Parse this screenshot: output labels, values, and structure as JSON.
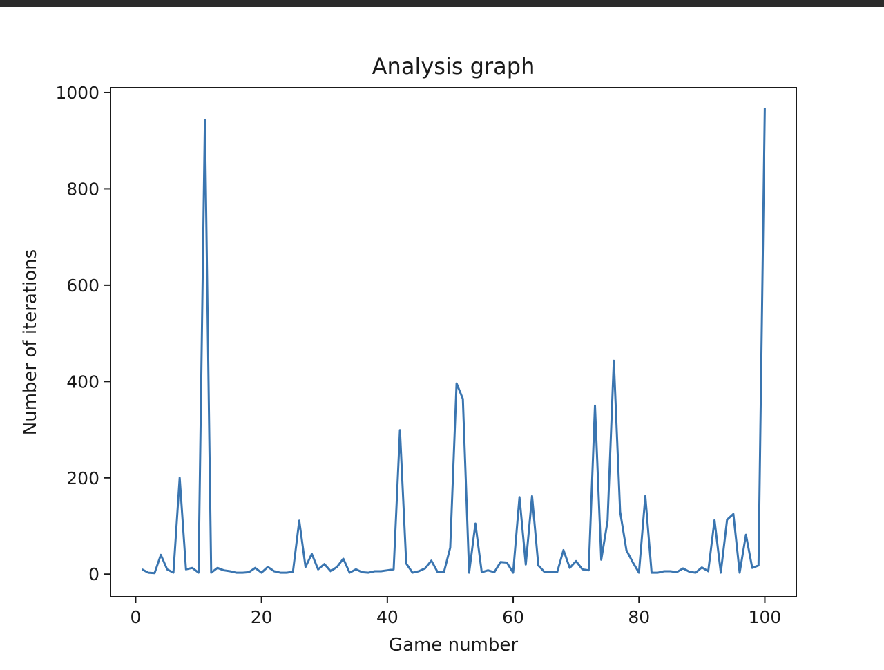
{
  "chart_data": {
    "type": "line",
    "title": "Analysis graph",
    "xlabel": "Game number",
    "ylabel": "Number of iterations",
    "xlim": [
      -4,
      105
    ],
    "ylim": [
      -47,
      1010
    ],
    "xticks": [
      0,
      20,
      40,
      60,
      80,
      100
    ],
    "yticks": [
      0,
      200,
      400,
      600,
      800,
      1000
    ],
    "grid": false,
    "line_color": "#3a75b0",
    "series": [
      {
        "x": [
          1,
          2,
          3,
          4,
          5,
          6,
          7,
          8,
          9,
          10,
          11,
          12,
          13,
          14,
          15,
          16,
          17,
          18,
          19,
          20,
          21,
          22,
          23,
          24,
          25,
          26,
          27,
          28,
          29,
          30,
          31,
          32,
          33,
          34,
          35,
          36,
          37,
          38,
          39,
          40,
          41,
          42,
          43,
          44,
          45,
          46,
          47,
          48,
          49,
          50,
          51,
          52,
          53,
          54,
          55,
          56,
          57,
          58,
          59,
          60,
          61,
          62,
          63,
          64,
          65,
          66,
          67,
          68,
          69,
          70,
          71,
          72,
          73,
          74,
          75,
          76,
          77,
          78,
          79,
          80,
          81,
          82,
          83,
          84,
          85,
          86,
          87,
          88,
          89,
          90,
          91,
          92,
          93,
          94,
          95,
          96,
          97,
          98,
          99,
          100
        ],
        "values": [
          10,
          3,
          2,
          40,
          10,
          3,
          200,
          10,
          13,
          3,
          943,
          3,
          13,
          8,
          6,
          3,
          3,
          4,
          13,
          3,
          15,
          6,
          3,
          3,
          5,
          111,
          15,
          42,
          10,
          21,
          6,
          15,
          32,
          3,
          10,
          4,
          3,
          6,
          6,
          8,
          10,
          299,
          22,
          3,
          6,
          12,
          28,
          4,
          4,
          55,
          396,
          364,
          3,
          105,
          4,
          8,
          4,
          25,
          24,
          3,
          160,
          20,
          162,
          18,
          4,
          4,
          4,
          50,
          13,
          27,
          10,
          8,
          350,
          30,
          110,
          443,
          130,
          50,
          25,
          3,
          162,
          3,
          3,
          6,
          6,
          4,
          12,
          5,
          3,
          14,
          6,
          112,
          3,
          113,
          125,
          3,
          82,
          13,
          18,
          967
        ]
      }
    ]
  }
}
